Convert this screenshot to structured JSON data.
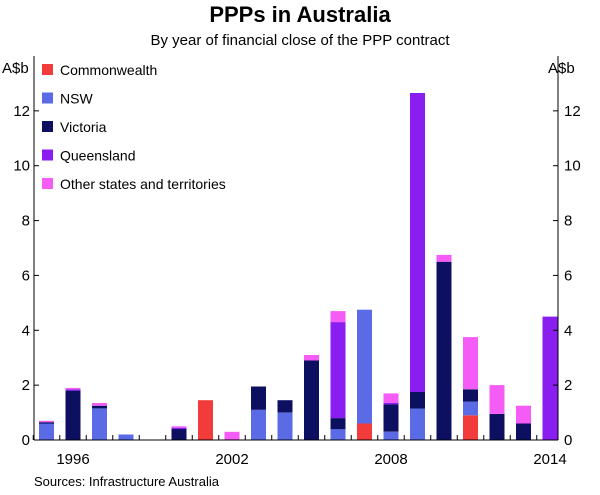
{
  "chart_data": {
    "type": "bar",
    "stacked": true,
    "title": "PPPs in Australia",
    "subtitle": "By year of financial close of the PPP contract",
    "ylabel": "A$b",
    "ylabel_left": "A$b",
    "ylabel_right": "A$b",
    "ylim": [
      0,
      14
    ],
    "yticks": [
      0,
      2,
      4,
      6,
      8,
      10,
      12
    ],
    "years": [
      1995,
      1996,
      1997,
      1998,
      1999,
      2000,
      2001,
      2002,
      2003,
      2004,
      2005,
      2006,
      2007,
      2008,
      2009,
      2010,
      2011,
      2012,
      2013,
      2014
    ],
    "xtick_labels": [
      "1996",
      "2002",
      "2008",
      "2014"
    ],
    "xticks": [
      1996,
      2002,
      2008,
      2014
    ],
    "grid": false,
    "legend_position": "top-left",
    "series": [
      {
        "name": "Commonwealth",
        "color": "#f23c3c",
        "values": [
          0,
          0,
          0,
          0,
          0,
          0,
          1.45,
          0,
          0,
          0,
          0,
          0,
          0.6,
          0,
          0,
          0,
          0.9,
          0,
          0,
          0
        ]
      },
      {
        "name": "NSW",
        "color": "#5b6be6",
        "values": [
          0.6,
          0,
          1.15,
          0.2,
          0,
          0,
          0,
          0,
          1.1,
          1.0,
          0,
          0.4,
          4.15,
          0.3,
          1.15,
          0,
          0.5,
          0,
          0,
          0
        ]
      },
      {
        "name": "Victoria",
        "color": "#0d1060",
        "values": [
          0.05,
          1.8,
          0.1,
          0,
          0,
          0.4,
          0,
          0,
          0.85,
          0.45,
          2.9,
          0.4,
          0,
          1.0,
          0.6,
          6.5,
          0.45,
          0.95,
          0.6,
          0
        ]
      },
      {
        "name": "Queensland",
        "color": "#8a1df0",
        "values": [
          0,
          0.05,
          0,
          0,
          0,
          0.05,
          0,
          0,
          0,
          0,
          0,
          3.5,
          0,
          0.05,
          10.9,
          0,
          0,
          0,
          0,
          4.5
        ]
      },
      {
        "name": "Other states and territories",
        "color": "#f55cf5",
        "values": [
          0.05,
          0.05,
          0.1,
          0,
          0,
          0.05,
          0,
          0.3,
          0,
          0,
          0.2,
          0.4,
          0,
          0.35,
          0,
          0.25,
          1.9,
          1.05,
          0.65,
          0
        ]
      }
    ],
    "source": "Sources: Infrastructure Australia"
  }
}
